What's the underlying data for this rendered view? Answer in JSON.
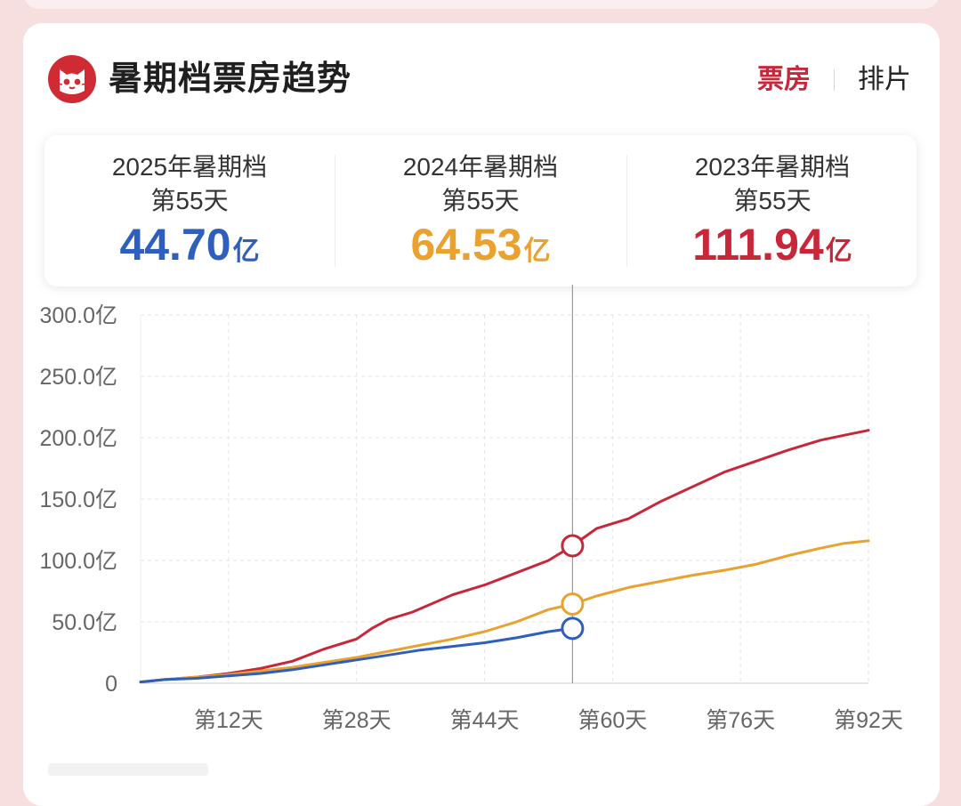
{
  "header": {
    "title": "暑期档票房趋势"
  },
  "tabs": [
    {
      "label": "票房",
      "active": true
    },
    {
      "label": "排片",
      "active": false
    }
  ],
  "summary": [
    {
      "label_year": "2025年暑期档",
      "label_day": "第55天",
      "value": "44.70",
      "unit": "亿",
      "color": "#2f5fbd"
    },
    {
      "label_year": "2024年暑期档",
      "label_day": "第55天",
      "value": "64.53",
      "unit": "亿",
      "color": "#e9a12f"
    },
    {
      "label_year": "2023年暑期档",
      "label_day": "第55天",
      "value": "111.94",
      "unit": "亿",
      "color": "#c8273a"
    }
  ],
  "chart_data": {
    "type": "line",
    "x_range": [
      1,
      92
    ],
    "ylim": [
      0,
      300
    ],
    "y_ticks": [
      0,
      50,
      100,
      150,
      200,
      250,
      300
    ],
    "y_tick_labels": [
      "0",
      "50.0亿",
      "100.0亿",
      "150.0亿",
      "200.0亿",
      "250.0亿",
      "300.0亿"
    ],
    "x_ticks": [
      12,
      28,
      44,
      60,
      76,
      92
    ],
    "x_tick_labels": [
      "第12天",
      "第28天",
      "第44天",
      "第60天",
      "第76天",
      "第92天"
    ],
    "marker_day": 55,
    "grid": true,
    "series": [
      {
        "color": "#c8273a",
        "x": [
          1,
          4,
          8,
          12,
          16,
          20,
          24,
          28,
          30,
          32,
          35,
          40,
          44,
          48,
          52,
          55,
          58,
          62,
          66,
          70,
          74,
          78,
          82,
          86,
          89,
          92
        ],
        "y": [
          1,
          3,
          5,
          8,
          12,
          18,
          28,
          36,
          45,
          52,
          58,
          72,
          80,
          90,
          100,
          112,
          126,
          134,
          148,
          160,
          172,
          181,
          190,
          198,
          202,
          206
        ]
      },
      {
        "color": "#e9a12f",
        "x": [
          1,
          4,
          8,
          12,
          16,
          20,
          24,
          28,
          32,
          36,
          40,
          44,
          48,
          52,
          55,
          58,
          62,
          66,
          70,
          74,
          78,
          82,
          86,
          89,
          92
        ],
        "y": [
          1,
          3,
          5,
          7,
          10,
          13,
          17,
          21,
          26,
          31,
          36,
          42,
          50,
          60,
          64.5,
          71,
          78,
          83,
          88,
          92,
          97,
          104,
          110,
          114,
          116
        ]
      },
      {
        "color": "#2f5fbd",
        "x": [
          1,
          4,
          8,
          12,
          16,
          20,
          24,
          28,
          32,
          36,
          40,
          44,
          48,
          52,
          55
        ],
        "y": [
          1,
          3,
          4,
          6,
          8,
          11,
          15,
          19,
          23,
          27,
          30,
          33,
          37,
          42,
          44.7
        ]
      }
    ]
  }
}
